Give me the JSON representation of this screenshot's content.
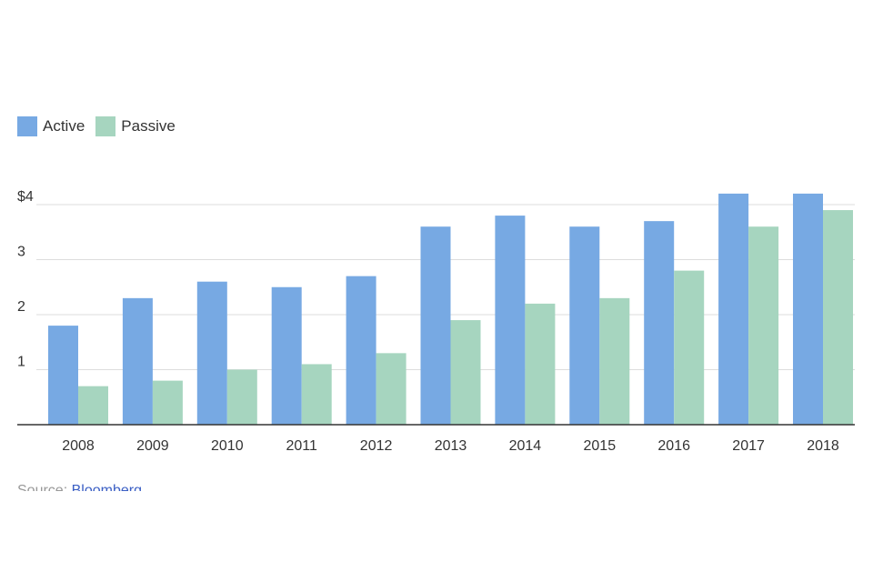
{
  "chart_data": {
    "type": "bar",
    "categories": [
      "2008",
      "2009",
      "2010",
      "2011",
      "2012",
      "2013",
      "2014",
      "2015",
      "2016",
      "2017",
      "2018"
    ],
    "series": [
      {
        "name": "Active",
        "color": "#77a9e3",
        "values": [
          1.8,
          2.3,
          2.6,
          2.5,
          2.7,
          3.6,
          3.8,
          3.6,
          3.7,
          4.2,
          4.2
        ]
      },
      {
        "name": "Passive",
        "color": "#a6d5bf",
        "values": [
          0.7,
          0.8,
          1.0,
          1.1,
          1.3,
          1.9,
          2.2,
          2.3,
          2.8,
          3.6,
          3.9
        ]
      }
    ],
    "yticks": [
      "1",
      "2",
      "3",
      "$4"
    ],
    "ylim": [
      0,
      4.2
    ],
    "grid": true,
    "legend_position": "top-left",
    "title": "",
    "xlabel": "",
    "ylabel": ""
  },
  "source": {
    "label": "Source:",
    "link_text": "Bloomberg"
  }
}
